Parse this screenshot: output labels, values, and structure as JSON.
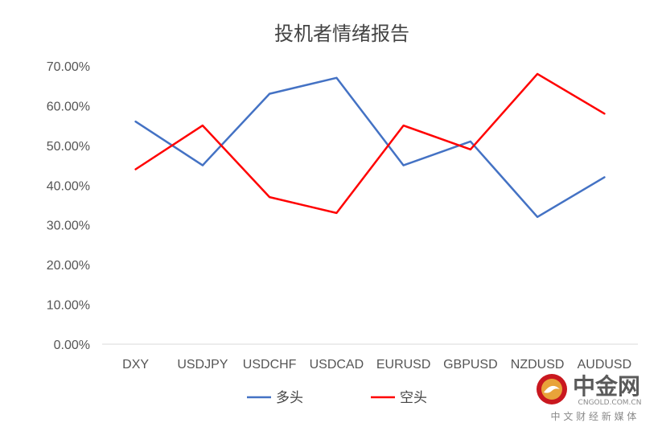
{
  "chart_data": {
    "type": "line",
    "title": "投机者情绪报告",
    "categories": [
      "DXY",
      "USDJPY",
      "USDCHF",
      "USDCAD",
      "EURUSD",
      "GBPUSD",
      "NZDUSD",
      "AUDUSD"
    ],
    "series": [
      {
        "name": "多头",
        "color": "#4472C4",
        "values": [
          0.56,
          0.45,
          0.63,
          0.67,
          0.45,
          0.51,
          0.32,
          0.42
        ]
      },
      {
        "name": "空头",
        "color": "#FF0000",
        "values": [
          0.44,
          0.55,
          0.37,
          0.33,
          0.55,
          0.49,
          0.68,
          0.58
        ]
      }
    ],
    "ylim": [
      0,
      0.7
    ],
    "yticks": [
      "0.00%",
      "10.00%",
      "20.00%",
      "30.00%",
      "40.00%",
      "50.00%",
      "60.00%",
      "70.00%"
    ],
    "xlabel": "",
    "ylabel": "",
    "grid": false,
    "legend_position": "bottom"
  },
  "watermark": {
    "name": "中金网",
    "domain": "CNGOLD.COM.CN",
    "tagline": "中 文 财 经 新 媒 体"
  }
}
